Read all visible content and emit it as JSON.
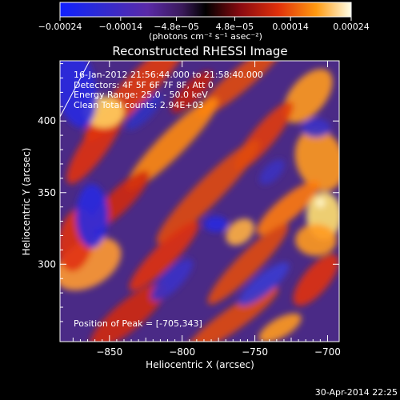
{
  "colorbar": {
    "ticks": [
      "-0.00024",
      "-0.00014",
      "-4.8e-05",
      "4.8e-05",
      "0.00014",
      "0.00024"
    ],
    "range": [
      -0.00024,
      0.00024
    ],
    "units": "(photons cm⁻² s⁻¹ asec⁻²)"
  },
  "chart_data": {
    "type": "heatmap",
    "title": "Reconstructed RHESSI Image",
    "xlabel": "Heliocentric X (arcsec)",
    "ylabel": "Heliocentric Y (arcsec)",
    "xlim": [
      -884,
      -692
    ],
    "ylim": [
      246,
      442
    ],
    "xticks": [
      -850,
      -800,
      -750,
      -700
    ],
    "yticks": [
      300,
      350,
      400
    ],
    "annotations": [
      "16-Jan-2012 21:56:44.000 to 21:58:40.000",
      "Detectors: 4F 5F 6F 7F 8F, Att 0",
      "Energy Range: 25.0 - 50.0 keV",
      "Clean    Total counts: 2.94E+03"
    ],
    "peak_label": "Position of Peak = [-705,343]",
    "peak": [
      -705,
      343
    ],
    "colormap": [
      "#1020ff",
      "#5a2aa8",
      "#000000",
      "#e0300a",
      "#ff9a10",
      "#ffffe8"
    ]
  },
  "footer": {
    "timestamp": "30-Apr-2014 22:25"
  }
}
